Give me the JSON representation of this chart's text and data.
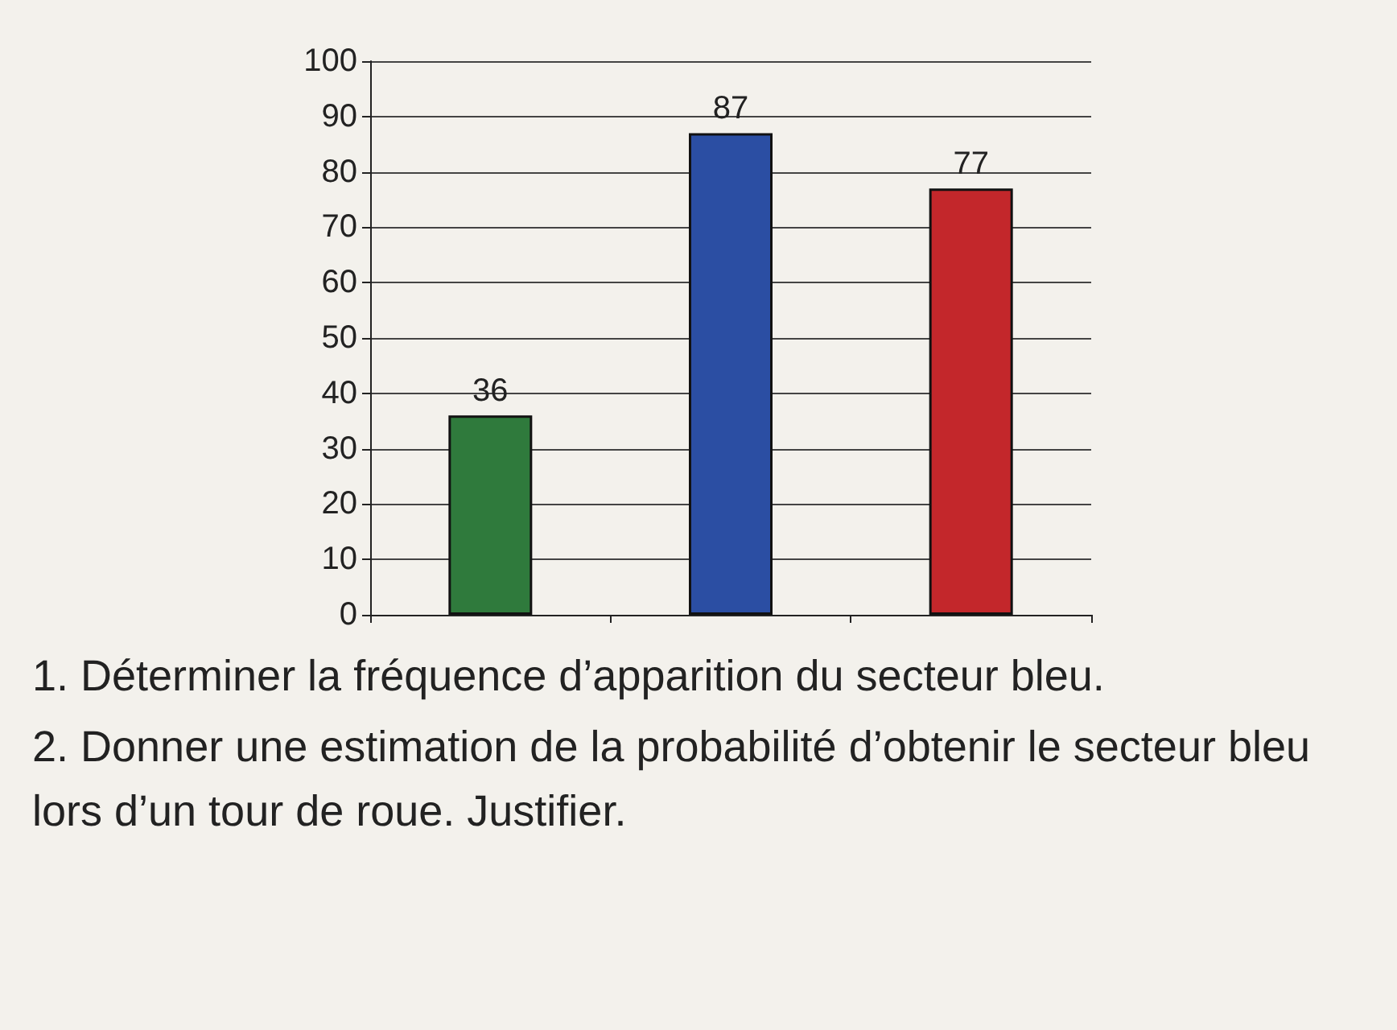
{
  "chart_data": {
    "type": "bar",
    "categories": [
      null,
      null,
      null
    ],
    "values": [
      36,
      87,
      77
    ],
    "colors": [
      "#2f7a3c",
      "#2b4ea3",
      "#c3272b"
    ],
    "ylim": [
      0,
      100
    ],
    "yticks": [
      0,
      10,
      20,
      30,
      40,
      50,
      60,
      70,
      80,
      90,
      100
    ],
    "grid": "y",
    "data_labels": true,
    "annotations": [
      "1. Déterminer la fréquence d’apparition du secteur bleu.",
      "2. Donner une estimation de la probabilité d’obtenir le secteur bleu lors d’un tour de roue. Justifier."
    ]
  }
}
